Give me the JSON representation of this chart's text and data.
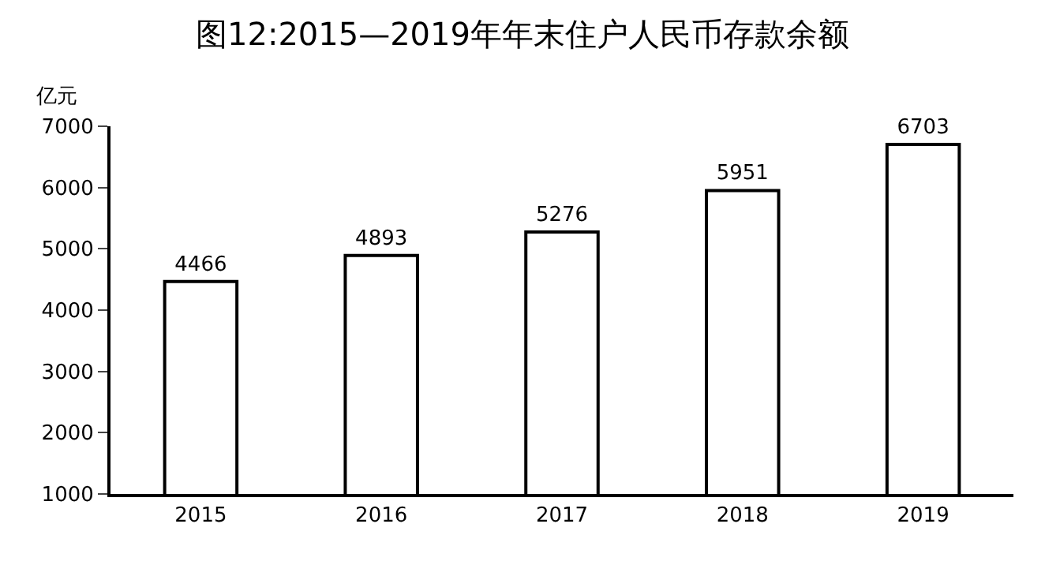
{
  "chart_data": {
    "type": "bar",
    "title": "图12:2015—2019年年末住户人民币存款余额",
    "ylabel": "亿元",
    "categories": [
      "2015",
      "2016",
      "2017",
      "2018",
      "2019"
    ],
    "values": [
      4466,
      4893,
      5276,
      5951,
      6703
    ],
    "color": "#ffffff",
    "ylim": [
      1000,
      7000
    ],
    "yticks": [
      1000,
      2000,
      3000,
      4000,
      5000,
      6000,
      7000
    ],
    "data_labels": true
  }
}
